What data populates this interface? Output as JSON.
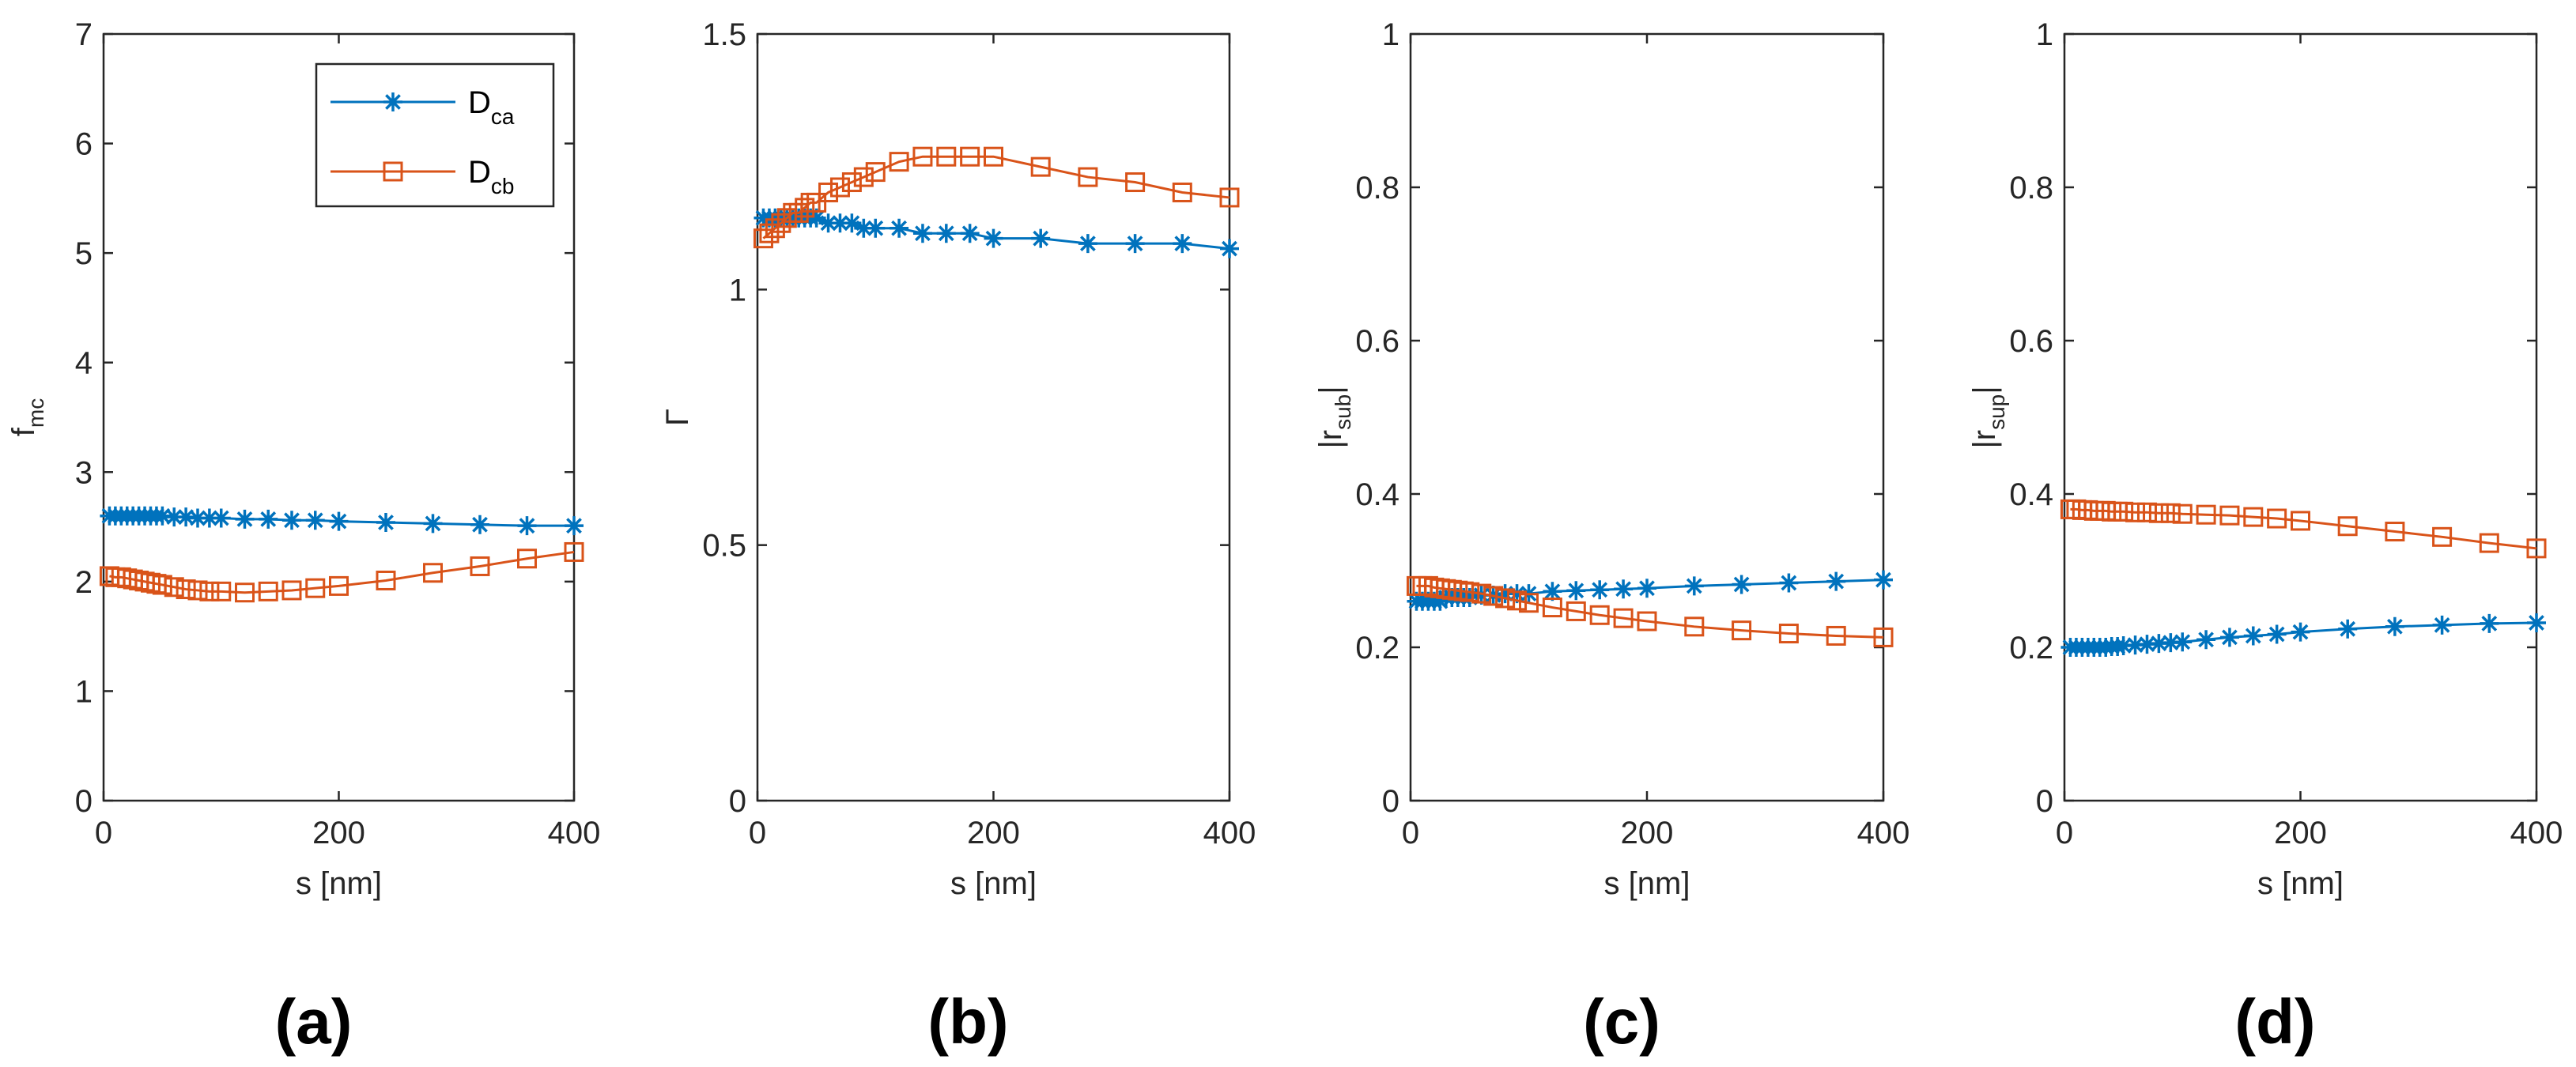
{
  "chart_data": [
    {
      "type": "line",
      "panel": "(a)",
      "ylabel": "f",
      "ylabel_sub": "mc",
      "xlabel": "s [nm]",
      "xlim": [
        0,
        400
      ],
      "ylim": [
        0,
        7
      ],
      "xticks": [
        0,
        200,
        400
      ],
      "yticks": [
        0,
        1,
        2,
        3,
        4,
        5,
        6,
        7
      ],
      "legend": {
        "position": "top-right",
        "entries": [
          {
            "name": "D",
            "sub": "ca"
          },
          {
            "name": "D",
            "sub": "cb"
          }
        ]
      },
      "series": [
        {
          "name": "D_ca",
          "color": "#0072BD",
          "marker": "star",
          "x": [
            5,
            10,
            15,
            20,
            25,
            30,
            35,
            40,
            45,
            50,
            60,
            70,
            80,
            90,
            100,
            120,
            140,
            160,
            180,
            200,
            240,
            280,
            320,
            360,
            400
          ],
          "y": [
            2.6,
            2.6,
            2.6,
            2.6,
            2.6,
            2.6,
            2.6,
            2.6,
            2.6,
            2.6,
            2.59,
            2.59,
            2.58,
            2.58,
            2.58,
            2.57,
            2.57,
            2.56,
            2.56,
            2.55,
            2.54,
            2.53,
            2.52,
            2.51,
            2.51
          ]
        },
        {
          "name": "D_cb",
          "color": "#D95319",
          "marker": "square",
          "x": [
            5,
            10,
            15,
            20,
            25,
            30,
            35,
            40,
            45,
            50,
            60,
            70,
            80,
            90,
            100,
            120,
            140,
            160,
            180,
            200,
            240,
            280,
            320,
            360,
            400
          ],
          "y": [
            2.05,
            2.04,
            2.04,
            2.03,
            2.02,
            2.01,
            2.0,
            1.99,
            1.98,
            1.97,
            1.95,
            1.93,
            1.92,
            1.91,
            1.91,
            1.9,
            1.91,
            1.92,
            1.94,
            1.96,
            2.01,
            2.08,
            2.14,
            2.21,
            2.27
          ]
        }
      ]
    },
    {
      "type": "line",
      "panel": "(b)",
      "ylabel": "Γ",
      "ylabel_sub": "",
      "xlabel": "s [nm]",
      "xlim": [
        0,
        400
      ],
      "ylim": [
        0,
        1.5
      ],
      "xticks": [
        0,
        200,
        400
      ],
      "yticks": [
        0,
        0.5,
        1,
        1.5
      ],
      "series": [
        {
          "name": "D_ca",
          "color": "#0072BD",
          "marker": "star",
          "x": [
            5,
            10,
            15,
            20,
            25,
            30,
            35,
            40,
            45,
            50,
            60,
            70,
            80,
            90,
            100,
            120,
            140,
            160,
            180,
            200,
            240,
            280,
            320,
            360,
            400
          ],
          "y": [
            1.14,
            1.14,
            1.14,
            1.14,
            1.14,
            1.14,
            1.14,
            1.14,
            1.14,
            1.14,
            1.13,
            1.13,
            1.13,
            1.12,
            1.12,
            1.12,
            1.11,
            1.11,
            1.11,
            1.1,
            1.1,
            1.09,
            1.09,
            1.09,
            1.08
          ]
        },
        {
          "name": "D_cb",
          "color": "#D95319",
          "marker": "square",
          "x": [
            5,
            10,
            15,
            20,
            25,
            30,
            35,
            40,
            45,
            50,
            60,
            70,
            80,
            90,
            100,
            120,
            140,
            160,
            180,
            200,
            240,
            280,
            320,
            360,
            400
          ],
          "y": [
            1.1,
            1.11,
            1.12,
            1.13,
            1.14,
            1.15,
            1.15,
            1.16,
            1.17,
            1.17,
            1.19,
            1.2,
            1.21,
            1.22,
            1.23,
            1.25,
            1.26,
            1.26,
            1.26,
            1.26,
            1.24,
            1.22,
            1.21,
            1.19,
            1.18
          ]
        }
      ]
    },
    {
      "type": "line",
      "panel": "(c)",
      "ylabel": "|r",
      "ylabel_sub": "sub",
      "ylabel_end": "|",
      "xlabel": "s [nm]",
      "xlim": [
        0,
        400
      ],
      "ylim": [
        0,
        1
      ],
      "xticks": [
        0,
        200,
        400
      ],
      "yticks": [
        0,
        0.2,
        0.4,
        0.6,
        0.8,
        1
      ],
      "series": [
        {
          "name": "D_ca",
          "color": "#0072BD",
          "marker": "star",
          "x": [
            5,
            10,
            15,
            20,
            25,
            30,
            35,
            40,
            45,
            50,
            60,
            70,
            80,
            90,
            100,
            120,
            140,
            160,
            180,
            200,
            240,
            280,
            320,
            360,
            400
          ],
          "y": [
            0.26,
            0.26,
            0.26,
            0.26,
            0.26,
            0.265,
            0.265,
            0.265,
            0.265,
            0.265,
            0.268,
            0.268,
            0.27,
            0.27,
            0.27,
            0.273,
            0.274,
            0.275,
            0.276,
            0.277,
            0.28,
            0.282,
            0.284,
            0.286,
            0.288
          ]
        },
        {
          "name": "D_cb",
          "color": "#D95319",
          "marker": "square",
          "x": [
            5,
            10,
            15,
            20,
            25,
            30,
            35,
            40,
            45,
            50,
            60,
            70,
            80,
            90,
            100,
            120,
            140,
            160,
            180,
            200,
            240,
            280,
            320,
            360,
            400
          ],
          "y": [
            0.28,
            0.28,
            0.28,
            0.278,
            0.277,
            0.276,
            0.275,
            0.274,
            0.273,
            0.272,
            0.27,
            0.267,
            0.264,
            0.261,
            0.258,
            0.252,
            0.247,
            0.242,
            0.238,
            0.234,
            0.227,
            0.222,
            0.218,
            0.215,
            0.213
          ]
        }
      ]
    },
    {
      "type": "line",
      "panel": "(d)",
      "ylabel": "|r",
      "ylabel_sub": "sup",
      "ylabel_end": "|",
      "xlabel": "s [nm]",
      "xlim": [
        0,
        400
      ],
      "ylim": [
        0,
        1
      ],
      "xticks": [
        0,
        200,
        400
      ],
      "yticks": [
        0,
        0.2,
        0.4,
        0.6,
        0.8,
        1
      ],
      "series": [
        {
          "name": "D_ca",
          "color": "#0072BD",
          "marker": "star",
          "x": [
            5,
            10,
            15,
            20,
            25,
            30,
            35,
            40,
            45,
            50,
            60,
            70,
            80,
            90,
            100,
            120,
            140,
            160,
            180,
            200,
            240,
            280,
            320,
            360,
            400
          ],
          "y": [
            0.2,
            0.2,
            0.2,
            0.2,
            0.2,
            0.2,
            0.2,
            0.201,
            0.201,
            0.202,
            0.203,
            0.204,
            0.205,
            0.206,
            0.207,
            0.21,
            0.213,
            0.215,
            0.217,
            0.22,
            0.224,
            0.227,
            0.229,
            0.231,
            0.232
          ]
        },
        {
          "name": "D_cb",
          "color": "#D95319",
          "marker": "square",
          "x": [
            5,
            10,
            15,
            20,
            25,
            30,
            35,
            40,
            45,
            50,
            60,
            70,
            80,
            90,
            100,
            120,
            140,
            160,
            180,
            200,
            240,
            280,
            320,
            360,
            400
          ],
          "y": [
            0.38,
            0.38,
            0.379,
            0.379,
            0.378,
            0.378,
            0.378,
            0.377,
            0.377,
            0.377,
            0.376,
            0.376,
            0.375,
            0.375,
            0.374,
            0.373,
            0.372,
            0.37,
            0.368,
            0.365,
            0.358,
            0.351,
            0.344,
            0.336,
            0.329
          ]
        }
      ]
    }
  ]
}
